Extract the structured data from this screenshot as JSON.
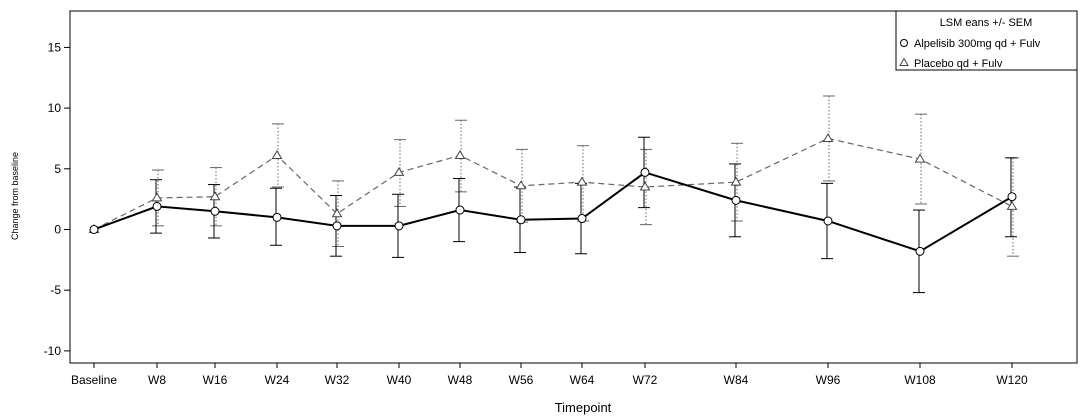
{
  "chart_data": {
    "type": "line",
    "xlabel": "Timepoint",
    "ylabel": "Change from baseline",
    "ylim": [
      -11,
      18
    ],
    "yticks": [
      -10,
      -5,
      0,
      5,
      10,
      15
    ],
    "categories": [
      "Baseline",
      "W8",
      "W16",
      "W24",
      "W32",
      "W40",
      "W48",
      "W56",
      "W64",
      "W72",
      "W84",
      "W96",
      "W108",
      "W120"
    ],
    "grid": false,
    "legend": {
      "title": "LSM eans +/- SEM",
      "placement": "top-right"
    },
    "series": [
      {
        "name": "Alpelisib 300mg qd + Fulv",
        "marker": "circle",
        "line_style": "solid",
        "color": "#000000",
        "values": [
          0.0,
          1.9,
          1.5,
          1.0,
          0.3,
          0.3,
          1.6,
          0.8,
          0.9,
          4.7,
          2.4,
          0.7,
          -1.8,
          2.7
        ],
        "lower": [
          0.0,
          -0.3,
          -0.7,
          -1.3,
          -2.2,
          -2.3,
          -1.0,
          -1.9,
          -2.0,
          1.8,
          -0.6,
          -2.4,
          -5.2,
          -0.6
        ],
        "upper": [
          0.0,
          4.1,
          3.7,
          3.4,
          2.8,
          2.9,
          4.2,
          3.5,
          3.8,
          7.6,
          5.4,
          3.8,
          1.6,
          5.9
        ]
      },
      {
        "name": "Placebo qd + Fulv",
        "marker": "triangle",
        "line_style": "dashed",
        "color": "#666666",
        "values": [
          0.0,
          2.6,
          2.7,
          6.1,
          1.3,
          4.7,
          6.1,
          3.6,
          3.9,
          3.5,
          3.9,
          7.5,
          5.8,
          1.9
        ],
        "lower": [
          0.0,
          0.3,
          0.3,
          3.5,
          -1.4,
          1.9,
          3.1,
          0.6,
          0.7,
          0.4,
          0.7,
          4.0,
          2.1,
          -2.2
        ],
        "upper": [
          0.0,
          4.9,
          5.1,
          8.7,
          4.0,
          7.4,
          9.0,
          6.6,
          6.9,
          6.6,
          7.1,
          11.0,
          9.5,
          5.9
        ]
      }
    ]
  }
}
